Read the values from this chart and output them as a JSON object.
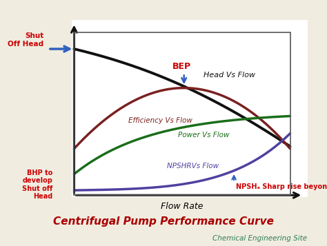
{
  "title": "Centrifugal Pump Performance Curve",
  "subtitle": "Chemical Engineering Site",
  "xlabel": "Flow Rate",
  "bg_color": "#f0ece0",
  "plot_bg": "#ffffff",
  "border_color": "#555555",
  "title_color": "#aa0000",
  "subtitle_color": "#2e7d4f",
  "curves": {
    "head": {
      "label": "Head Vs Flow",
      "color": "#111111",
      "lw": 2.8
    },
    "efficiency": {
      "label": "Efficiency Vs Flow",
      "color": "#7b2020",
      "lw": 2.5
    },
    "power": {
      "label": "Power Vs Flow",
      "color": "#1a6e1a",
      "lw": 2.5
    },
    "npshr": {
      "label": "NPSHRVs Flow",
      "color": "#5040a0",
      "lw": 2.5
    }
  },
  "annotations": {
    "shut_off_head": {
      "text": "Shut\nOff Head",
      "color": "#cc0000",
      "fontsize": 7.5
    },
    "bhp": {
      "text": "BHP to\ndevelop\nShut off\nHead",
      "color": "#cc0000",
      "fontsize": 7.0
    },
    "bep": {
      "text": "BEP",
      "color": "#cc0000",
      "fontsize": 9
    },
    "npsh_rise": {
      "text": "NPSHₐ Sharp rise beyond BEP",
      "color": "#cc0000",
      "fontsize": 7.0
    }
  },
  "arrow_color": "#3060c0",
  "axis_color": "#111111"
}
